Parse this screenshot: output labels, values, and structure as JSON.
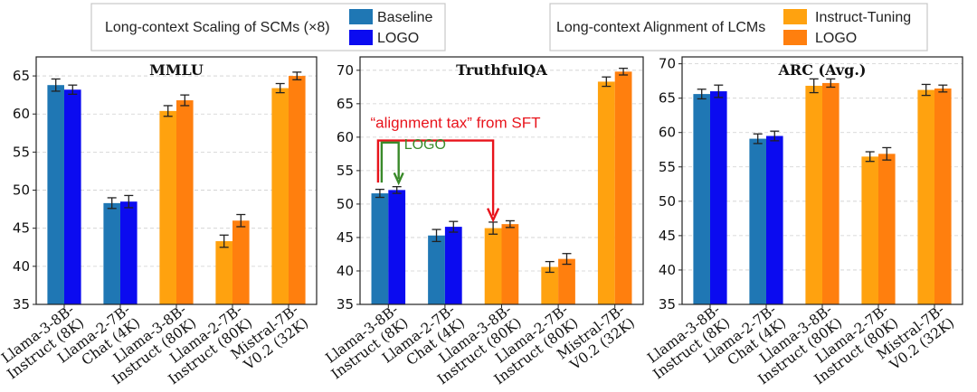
{
  "legends": [
    {
      "title": "Long-context Scaling of SCMs (×8)",
      "entries": [
        {
          "label": "Baseline",
          "color": "#1f77b4"
        },
        {
          "label": "LOGO",
          "color": "#0b0bf0"
        }
      ]
    },
    {
      "title": "Long-context Alignment of LCMs",
      "entries": [
        {
          "label": "Instruct-Tuning",
          "color": "#ffa20f"
        },
        {
          "label": "LOGO",
          "color": "#ff7f0e"
        }
      ]
    }
  ],
  "chart_data": [
    {
      "type": "bar",
      "title": "MMLU",
      "categories": [
        [
          "Llama-3-8B-",
          "Instruct (8K)"
        ],
        [
          "Llama-2-7B-",
          "Chat (4K)"
        ],
        [
          "Llama-3-8B-",
          "Instruct (80K)"
        ],
        [
          "Llama-2-7B-",
          "Instruct (80K)"
        ],
        [
          "Mistral-7B-",
          "V0.2 (32K)"
        ]
      ],
      "ylim": [
        35,
        67.5
      ],
      "yticks": [
        35,
        40,
        45,
        50,
        55,
        60,
        65
      ],
      "grid": true,
      "series": [
        {
          "name": "Baseline / Instruct-Tuning",
          "values": [
            63.8,
            48.3,
            60.4,
            43.3,
            63.4
          ],
          "errors": [
            0.8,
            0.7,
            0.7,
            0.8,
            0.6
          ],
          "colors": [
            "#1f77b4",
            "#1f77b4",
            "#ffa20f",
            "#ffa20f",
            "#ffa20f"
          ]
        },
        {
          "name": "LOGO",
          "values": [
            63.2,
            48.5,
            61.8,
            46.0,
            65.0
          ],
          "errors": [
            0.6,
            0.8,
            0.7,
            0.8,
            0.5
          ],
          "colors": [
            "#0b0bf0",
            "#0b0bf0",
            "#ff7f0e",
            "#ff7f0e",
            "#ff7f0e"
          ]
        }
      ]
    },
    {
      "type": "bar",
      "title": "TruthfulQA",
      "categories": [
        [
          "Llama-3-8B-",
          "Instruct (8K)"
        ],
        [
          "Llama-2-7B-",
          "Chat (4K)"
        ],
        [
          "Llama-3-8B-",
          "Instruct (80K)"
        ],
        [
          "Llama-2-7B-",
          "Instruct (80K)"
        ],
        [
          "Mistral-7B-",
          "V0.2 (32K)"
        ]
      ],
      "ylim": [
        35,
        72
      ],
      "yticks": [
        35,
        40,
        45,
        50,
        55,
        60,
        65,
        70
      ],
      "grid": true,
      "series": [
        {
          "name": "Baseline / Instruct-Tuning",
          "values": [
            51.6,
            45.3,
            46.4,
            40.6,
            68.3
          ],
          "errors": [
            0.6,
            0.9,
            0.9,
            0.8,
            0.7
          ],
          "colors": [
            "#1f77b4",
            "#1f77b4",
            "#ffa20f",
            "#ffa20f",
            "#ffa20f"
          ]
        },
        {
          "name": "LOGO",
          "values": [
            52.1,
            46.6,
            47.0,
            41.8,
            69.8
          ],
          "errors": [
            0.5,
            0.8,
            0.5,
            0.8,
            0.5
          ],
          "colors": [
            "#0b0bf0",
            "#0b0bf0",
            "#ff7f0e",
            "#ff7f0e",
            "#ff7f0e"
          ]
        }
      ],
      "annotations": [
        {
          "text": "“alignment tax” from SFT",
          "color": "#e8131b",
          "from": [
            0,
            0
          ],
          "to": [
            2,
            0
          ]
        },
        {
          "text": "LOGO",
          "color": "#3a8a2a",
          "from": [
            0,
            0
          ],
          "to": [
            0,
            1
          ]
        }
      ]
    },
    {
      "type": "bar",
      "title": "ARC (Avg.)",
      "categories": [
        [
          "Llama-3-8B-",
          "Instruct (8K)"
        ],
        [
          "Llama-2-7B-",
          "Chat (4K)"
        ],
        [
          "Llama-3-8B-",
          "Instruct (80K)"
        ],
        [
          "Llama-2-7B-",
          "Instruct (80K)"
        ],
        [
          "Mistral-7B-",
          "V0.2 (32K)"
        ]
      ],
      "ylim": [
        35,
        71
      ],
      "yticks": [
        35,
        40,
        45,
        50,
        55,
        60,
        65,
        70
      ],
      "grid": true,
      "series": [
        {
          "name": "Baseline / Instruct-Tuning",
          "values": [
            65.6,
            59.1,
            66.8,
            56.5,
            66.2
          ],
          "errors": [
            0.7,
            0.7,
            1.0,
            0.7,
            0.8
          ],
          "colors": [
            "#1f77b4",
            "#1f77b4",
            "#ffa20f",
            "#ffa20f",
            "#ffa20f"
          ]
        },
        {
          "name": "LOGO",
          "values": [
            66.0,
            59.5,
            67.2,
            56.9,
            66.4
          ],
          "errors": [
            0.9,
            0.7,
            0.6,
            0.9,
            0.5
          ],
          "colors": [
            "#0b0bf0",
            "#0b0bf0",
            "#ff7f0e",
            "#ff7f0e",
            "#ff7f0e"
          ]
        }
      ]
    }
  ]
}
